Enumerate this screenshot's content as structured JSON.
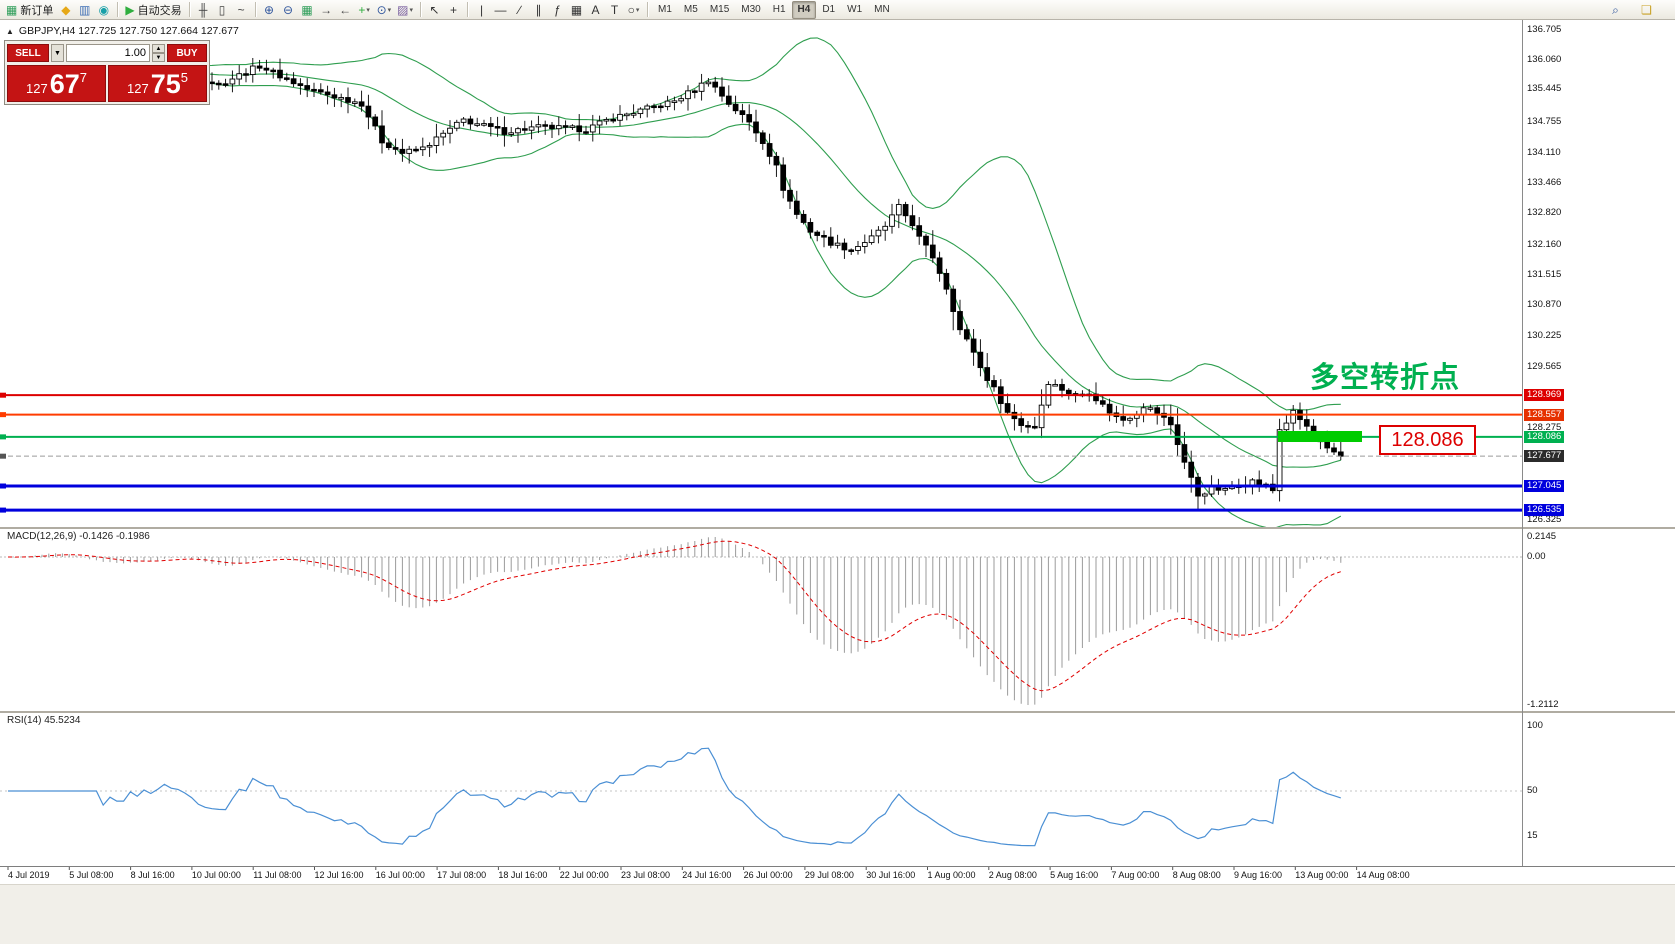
{
  "toolbar": {
    "dropdown_glyph": "▾",
    "groups": [
      {
        "name": "file",
        "items": [
          {
            "name": "new-order-button",
            "glyph": "▦",
            "color": "#2f9e5a",
            "label": "新订单"
          },
          {
            "name": "navigator-icon",
            "glyph": "◆",
            "color": "#e6a817"
          },
          {
            "name": "market-watch-icon",
            "glyph": "▥",
            "color": "#3f6fb5"
          },
          {
            "name": "data-window-icon",
            "glyph": "◉",
            "color": "#18a0a8"
          }
        ]
      },
      {
        "name": "autotrade",
        "items": [
          {
            "name": "autotrading-button",
            "glyph": "▶",
            "color": "#2fae3e",
            "label": "自动交易"
          }
        ]
      },
      {
        "name": "chart-types",
        "items": [
          {
            "name": "bars-chart-icon",
            "glyph": "╫",
            "color": "#444444"
          },
          {
            "name": "candles-chart-icon",
            "glyph": "▯",
            "color": "#444444"
          },
          {
            "name": "line-chart-icon",
            "glyph": "~",
            "color": "#444444"
          }
        ]
      },
      {
        "name": "view",
        "items": [
          {
            "name": "zoom-in-icon",
            "glyph": "⊕",
            "color": "#33589e"
          },
          {
            "name": "zoom-out-icon",
            "glyph": "⊖",
            "color": "#33589e"
          },
          {
            "name": "tile-windows-icon",
            "glyph": "▦",
            "color": "#2f9e5a"
          },
          {
            "name": "auto-scroll-icon",
            "glyph": "→",
            "color": "#444444"
          },
          {
            "name": "chart-shift-icon",
            "glyph": "←",
            "color": "#444444"
          },
          {
            "name": "indicators-icon",
            "glyph": "+",
            "color": "#2fae3e",
            "dd": true
          },
          {
            "name": "periods-icon",
            "glyph": "⊙",
            "color": "#33589e",
            "dd": true
          },
          {
            "name": "templates-icon",
            "glyph": "▨",
            "color": "#7a5fa0",
            "dd": true
          }
        ]
      },
      {
        "name": "cursor",
        "items": [
          {
            "name": "cursor-icon",
            "glyph": "↖",
            "color": "#333333"
          },
          {
            "name": "crosshair-icon",
            "glyph": "+",
            "color": "#333333"
          }
        ]
      },
      {
        "name": "objects",
        "items": [
          {
            "name": "vertical-line-icon",
            "glyph": "|",
            "color": "#333333"
          },
          {
            "name": "horizontal-line-icon",
            "glyph": "—",
            "color": "#333333"
          },
          {
            "name": "trendline-icon",
            "glyph": "∕",
            "color": "#333333"
          },
          {
            "name": "channel-icon",
            "glyph": "∥",
            "color": "#333333"
          },
          {
            "name": "fibonacci-icon",
            "glyph": "ƒ",
            "color": "#333333"
          },
          {
            "name": "grid-icon",
            "glyph": "▦",
            "color": "#333333"
          },
          {
            "name": "text-icon",
            "glyph": "A",
            "color": "#333333"
          },
          {
            "name": "label-icon",
            "glyph": "T",
            "color": "#333333"
          },
          {
            "name": "shapes-icon",
            "glyph": "○",
            "color": "#333333",
            "dd": true
          }
        ]
      },
      {
        "name": "timeframes",
        "items": [
          {
            "name": "tf-m1-button",
            "label": "M1"
          },
          {
            "name": "tf-m5-button",
            "label": "M5"
          },
          {
            "name": "tf-m15-button",
            "label": "M15"
          },
          {
            "name": "tf-m30-button",
            "label": "M30"
          },
          {
            "name": "tf-h1-button",
            "label": "H1"
          },
          {
            "name": "tf-h4-button",
            "label": "H4",
            "active": true
          },
          {
            "name": "tf-d1-button",
            "label": "D1"
          },
          {
            "name": "tf-w1-button",
            "label": "W1"
          },
          {
            "name": "tf-mn-button",
            "label": "MN"
          }
        ]
      }
    ],
    "right_icons": [
      {
        "name": "search-icon",
        "glyph": "⌕",
        "color": "#33589e"
      },
      {
        "name": "community-icon",
        "glyph": "❏",
        "color": "#c9a227"
      }
    ]
  },
  "chart": {
    "collapse_glyph": "▲",
    "title": "GBPJPY,H4 127.725 127.750 127.664 127.677",
    "annotation": "多空转折点",
    "price_tag": "128.086",
    "y_ticks": [
      "136.705",
      "136.060",
      "135.445",
      "134.755",
      "134.110",
      "133.466",
      "132.820",
      "132.160",
      "131.515",
      "130.870",
      "130.225",
      "129.565",
      "128.275",
      "126.325"
    ],
    "levels": [
      {
        "price": "128.969",
        "value": 128.969,
        "color": "#dd0000",
        "badge": "#dd0000",
        "width": 2
      },
      {
        "price": "128.557",
        "value": 128.557,
        "color": "#ff3c00",
        "badge": "#e63000",
        "width": 2
      },
      {
        "price": "128.086",
        "value": 128.086,
        "color": "#00b050",
        "badge": "#00b050",
        "width": 2
      },
      {
        "price": "127.677",
        "value": 127.677,
        "color": "#9a9a9a",
        "badge": "#2b2b2b",
        "width": 1,
        "current": true
      },
      {
        "price": "127.045",
        "value": 127.045,
        "color": "#0000dd",
        "badge": "#0000dd",
        "width": 3
      },
      {
        "price": "126.535",
        "value": 126.535,
        "color": "#0000dd",
        "badge": "#0000dd",
        "width": 3
      }
    ]
  },
  "trade_panel": {
    "sell_label": "SELL",
    "buy_label": "BUY",
    "dropdown_glyph": "▼",
    "spin_up_glyph": "▲",
    "spin_down_glyph": "▼",
    "volume": "1.00",
    "sell_price": {
      "prefix": "127",
      "big": "67",
      "sup": "7"
    },
    "buy_price": {
      "prefix": "127",
      "big": "75",
      "sup": "5"
    }
  },
  "macd": {
    "label": "MACD(12,26,9) -0.1426 -0.1986",
    "axis": [
      "0.2145",
      "0.00",
      "-1.2112"
    ]
  },
  "rsi": {
    "label": "RSI(14) 45.5234",
    "axis": [
      "100",
      "50",
      "15"
    ]
  },
  "time_axis": [
    "4 Jul 2019",
    "5 Jul 08:00",
    "8 Jul 16:00",
    "10 Jul 00:00",
    "11 Jul 08:00",
    "12 Jul 16:00",
    "16 Jul 00:00",
    "17 Jul 08:00",
    "18 Jul 16:00",
    "22 Jul 00:00",
    "23 Jul 08:00",
    "24 Jul 16:00",
    "26 Jul 00:00",
    "29 Jul 08:00",
    "30 Jul 16:00",
    "1 Aug 00:00",
    "2 Aug 08:00",
    "5 Aug 16:00",
    "7 Aug 00:00",
    "8 Aug 08:00",
    "9 Aug 16:00",
    "13 Aug 00:00",
    "14 Aug 08:00"
  ],
  "chart_data": {
    "type": "candlestick",
    "symbol": "GBPJPY",
    "timeframe": "H4",
    "ohlc_display": {
      "open": "127.725",
      "high": "127.750",
      "low": "127.664",
      "close": "127.677"
    },
    "y_range": {
      "max": 136.705,
      "min": 126.325
    },
    "bars": 197,
    "last_close": 127.677,
    "close_anchors": [
      [
        0,
        135.85
      ],
      [
        6,
        136.05
      ],
      [
        12,
        135.7
      ],
      [
        18,
        135.78
      ],
      [
        24,
        135.92
      ],
      [
        31,
        135.55
      ],
      [
        37,
        135.95
      ],
      [
        44,
        135.45
      ],
      [
        52,
        135.15
      ],
      [
        55,
        134.35
      ],
      [
        58,
        134.1
      ],
      [
        61,
        134.2
      ],
      [
        67,
        134.8
      ],
      [
        73,
        134.55
      ],
      [
        78,
        134.65
      ],
      [
        85,
        134.6
      ],
      [
        89,
        134.85
      ],
      [
        93,
        135.0
      ],
      [
        98,
        135.2
      ],
      [
        101,
        135.45
      ],
      [
        103,
        135.65
      ],
      [
        106,
        135.15
      ],
      [
        109,
        134.75
      ],
      [
        111,
        134.35
      ],
      [
        113,
        133.8
      ],
      [
        114,
        133.35
      ],
      [
        116,
        132.8
      ],
      [
        118,
        132.45
      ],
      [
        121,
        132.2
      ],
      [
        124,
        132.05
      ],
      [
        127,
        132.3
      ],
      [
        129,
        132.55
      ],
      [
        131,
        132.95
      ],
      [
        133,
        132.6
      ],
      [
        134,
        132.3
      ],
      [
        136,
        131.9
      ],
      [
        138,
        131.25
      ],
      [
        140,
        130.35
      ],
      [
        142,
        129.9
      ],
      [
        143,
        129.55
      ],
      [
        145,
        129.1
      ],
      [
        147,
        128.6
      ],
      [
        149,
        128.35
      ],
      [
        151,
        128.3
      ],
      [
        153,
        129.25
      ],
      [
        155,
        129.1
      ],
      [
        157,
        128.95
      ],
      [
        159,
        129.05
      ],
      [
        161,
        128.75
      ],
      [
        163,
        128.5
      ],
      [
        164,
        128.45
      ],
      [
        166,
        128.6
      ],
      [
        167,
        128.75
      ],
      [
        169,
        128.6
      ],
      [
        171,
        128.35
      ],
      [
        173,
        127.55
      ],
      [
        175,
        126.85
      ],
      [
        177,
        127.0
      ],
      [
        179,
        126.95
      ],
      [
        181,
        127.1
      ],
      [
        183,
        127.15
      ],
      [
        185,
        127.05
      ],
      [
        186,
        126.95
      ],
      [
        187,
        128.25
      ],
      [
        188,
        128.4
      ],
      [
        189,
        128.6
      ],
      [
        190,
        128.45
      ],
      [
        191,
        128.3
      ],
      [
        192,
        128.1
      ],
      [
        193,
        127.95
      ],
      [
        194,
        127.8
      ],
      [
        195,
        127.72
      ],
      [
        196,
        127.677
      ]
    ],
    "indicators": {
      "bollinger": {
        "period": 20,
        "deviation": 2
      },
      "macd": {
        "fast": 12,
        "slow": 26,
        "signal": 9,
        "values": [
          -0.1426,
          -0.1986
        ],
        "display_range": [
          0.2145,
          -1.2112
        ]
      },
      "rsi": {
        "period": 14,
        "value": 45.5234
      }
    }
  }
}
